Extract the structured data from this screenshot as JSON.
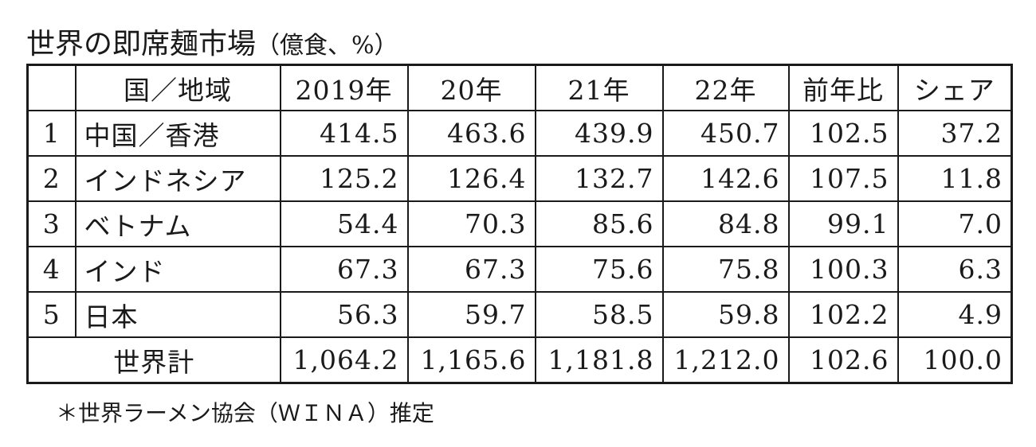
{
  "title": "世界の即席麺市場",
  "unit": "（億食、%）",
  "table": {
    "header": [
      "国／地域",
      "2019年",
      "20年",
      "21年",
      "22年",
      "前年比",
      "シェア"
    ],
    "rows": [
      [
        "1",
        "中国／香港",
        "414.5",
        "463.6",
        "439.9",
        "450.7",
        "102.5",
        "37.2"
      ],
      [
        "2",
        "インドネシア",
        "125.2",
        "126.4",
        "132.7",
        "142.6",
        "107.5",
        "11.8"
      ],
      [
        "3",
        "ベトナム",
        "54.4",
        "70.3",
        "85.6",
        "84.8",
        "99.1",
        "7.0"
      ],
      [
        "4",
        "インド",
        "67.3",
        "67.3",
        "75.6",
        "75.8",
        "100.3",
        "6.3"
      ],
      [
        "5",
        "日本",
        "56.3",
        "59.7",
        "58.5",
        "59.8",
        "102.2",
        "4.9"
      ]
    ],
    "total": [
      "世界計",
      "1,064.2",
      "1,165.6",
      "1,181.8",
      "1,212.0",
      "102.6",
      "100.0"
    ]
  },
  "note": "＊世界ラーメン協会（ＷＩＮＡ）推定"
}
